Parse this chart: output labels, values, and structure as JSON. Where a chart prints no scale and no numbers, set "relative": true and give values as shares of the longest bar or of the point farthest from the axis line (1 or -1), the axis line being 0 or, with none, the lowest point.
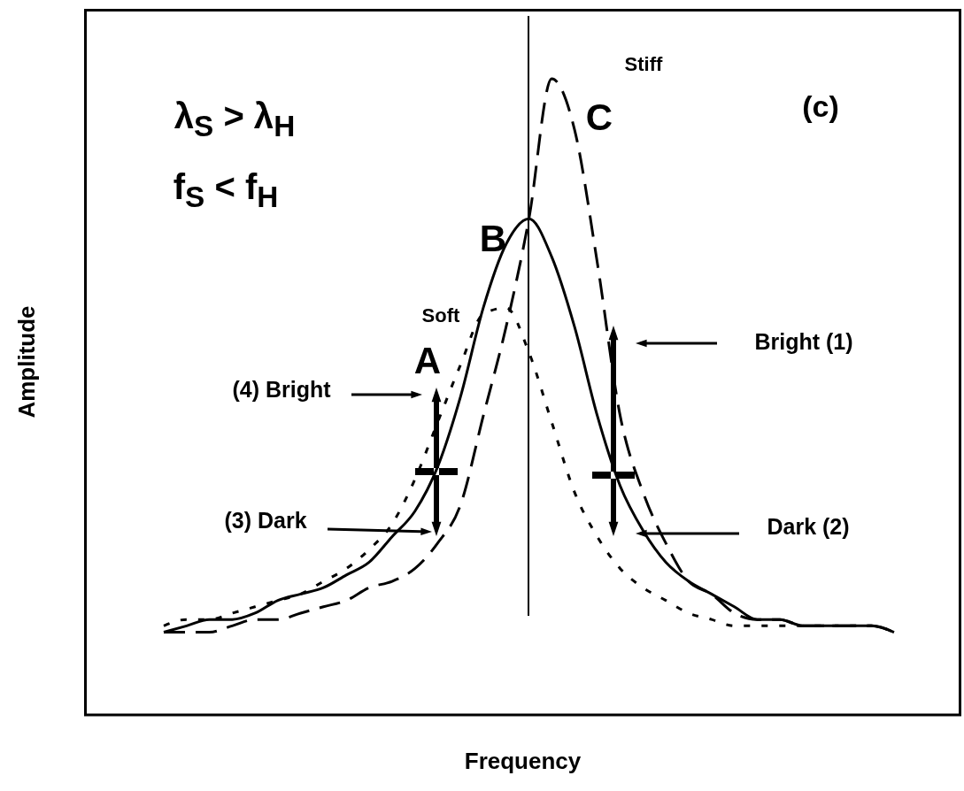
{
  "chart_data": {
    "type": "line",
    "xlabel": "Frequency",
    "ylabel": "Amplitude",
    "relative": true,
    "marker": "none",
    "legend": false,
    "grid": false,
    "categories": [
      null,
      null,
      null,
      null,
      null,
      null,
      null,
      null,
      null,
      null,
      null,
      null,
      null,
      null,
      null,
      null,
      null,
      null,
      null,
      null,
      null,
      null,
      null,
      null,
      null,
      null,
      null,
      null,
      null,
      null,
      null,
      null,
      null
    ],
    "series": [
      {
        "color": "#000000",
        "line_style": "solid",
        "values": [
          0.13,
          0.14,
          0.15,
          0.15,
          0.16,
          0.18,
          0.19,
          0.2,
          0.22,
          0.24,
          0.28,
          0.32,
          0.39,
          0.5,
          0.64,
          0.74,
          0.78,
          0.72,
          0.61,
          0.47,
          0.36,
          0.29,
          0.24,
          0.21,
          0.19,
          0.17,
          0.15,
          0.15,
          0.14,
          0.14,
          0.14,
          0.14,
          0.13
        ]
      },
      {
        "color": "#000000",
        "line_style": "dashed",
        "values": [
          0.13,
          0.13,
          0.13,
          0.14,
          0.15,
          0.15,
          0.16,
          0.17,
          0.18,
          0.2,
          0.21,
          0.23,
          0.27,
          0.33,
          0.47,
          0.61,
          0.78,
          1,
          0.92,
          0.71,
          0.47,
          0.35,
          0.27,
          0.21,
          0.19,
          0.16,
          0.15,
          0.15,
          0.14,
          0.14,
          0.14,
          0.14,
          0.13
        ]
      },
      {
        "color": "#000000",
        "line_style": "dotted",
        "values": [
          0.14,
          0.15,
          0.15,
          0.16,
          0.17,
          0.18,
          0.19,
          0.21,
          0.23,
          0.26,
          0.3,
          0.37,
          0.46,
          0.55,
          0.63,
          0.64,
          0.57,
          0.46,
          0.35,
          0.28,
          0.23,
          0.2,
          0.18,
          0.16,
          0.15,
          0.14,
          0.14,
          0.14,
          0.14,
          0.14,
          0.14,
          0.14,
          0.13
        ]
      }
    ],
    "annotations": [
      "λ$_{S}$ > λ$_{H}$",
      "f$_{S}$ < f$_{H}$",
      "(c)",
      "B",
      "C",
      "A",
      "Soft",
      "Stiff",
      "Bright (1)",
      "(4) Bright",
      "(3) Dark",
      "Dark (2)"
    ]
  }
}
